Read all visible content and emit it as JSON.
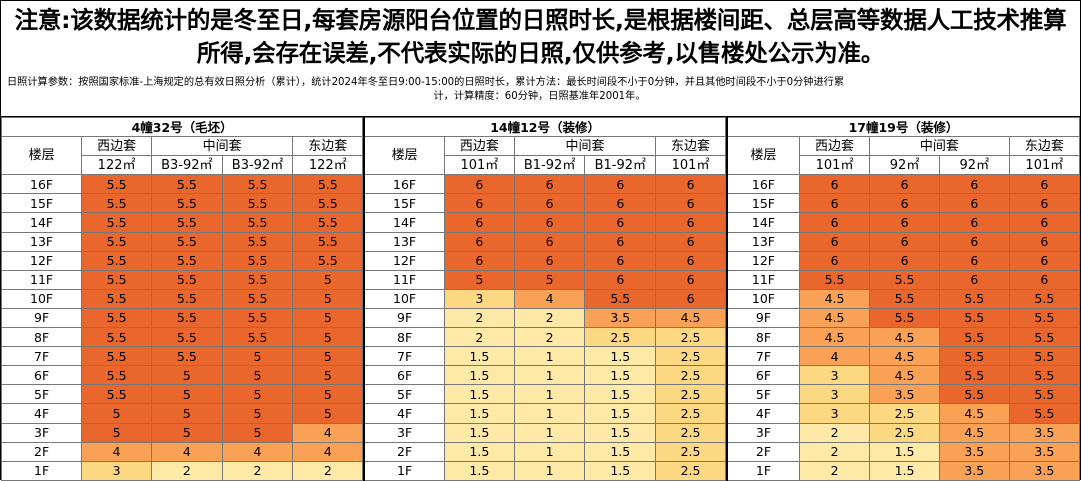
{
  "notice": "注意:该数据统计的是冬至日,每套房源阳台位置的日照时长,是根据楼间距、总层高等数据人工技术推算所得,会存在误差,不代表实际的日照,仅供参考,以售楼处公示为准。",
  "params_line1": "日照计算参数：按照国家标准-上海规定的总有效日照分析（累计），统计2024年冬至日9:00-15:00的日照时长，累计方法：最长时间段不小于0分钟，并且其他时间段不小于0分钟进行累",
  "params_line2": "计，计算精度：60分钟，日照基准年2001年。",
  "floor_label": "楼层",
  "colors": {
    "dark": "#E9662C",
    "mid": "#F9A154",
    "light": "#FDD882",
    "pale": "#FEE9A6"
  },
  "buildings": [
    {
      "name": "4幢32号（毛坯）",
      "groups": [
        "西边套",
        "中间套",
        "东边套"
      ],
      "units": [
        "122㎡",
        "B3-92㎡",
        "B3-92㎡",
        "122㎡"
      ],
      "rows": [
        {
          "floor": "16F",
          "values": [
            "5.5",
            "5.5",
            "5.5",
            "5.5"
          ]
        },
        {
          "floor": "15F",
          "values": [
            "5.5",
            "5.5",
            "5.5",
            "5.5"
          ]
        },
        {
          "floor": "14F",
          "values": [
            "5.5",
            "5.5",
            "5.5",
            "5.5"
          ]
        },
        {
          "floor": "13F",
          "values": [
            "5.5",
            "5.5",
            "5.5",
            "5.5"
          ]
        },
        {
          "floor": "12F",
          "values": [
            "5.5",
            "5.5",
            "5.5",
            "5.5"
          ]
        },
        {
          "floor": "11F",
          "values": [
            "5.5",
            "5.5",
            "5.5",
            "5"
          ]
        },
        {
          "floor": "10F",
          "values": [
            "5.5",
            "5.5",
            "5.5",
            "5"
          ]
        },
        {
          "floor": "9F",
          "values": [
            "5.5",
            "5.5",
            "5.5",
            "5"
          ]
        },
        {
          "floor": "8F",
          "values": [
            "5.5",
            "5.5",
            "5.5",
            "5"
          ]
        },
        {
          "floor": "7F",
          "values": [
            "5.5",
            "5.5",
            "5",
            "5"
          ]
        },
        {
          "floor": "6F",
          "values": [
            "5.5",
            "5",
            "5",
            "5"
          ]
        },
        {
          "floor": "5F",
          "values": [
            "5.5",
            "5",
            "5",
            "5"
          ]
        },
        {
          "floor": "4F",
          "values": [
            "5",
            "5",
            "5",
            "5"
          ]
        },
        {
          "floor": "3F",
          "values": [
            "5",
            "5",
            "5",
            "4"
          ]
        },
        {
          "floor": "2F",
          "values": [
            "4",
            "4",
            "4",
            "4"
          ]
        },
        {
          "floor": "1F",
          "values": [
            "3",
            "2",
            "2",
            "2"
          ]
        }
      ]
    },
    {
      "name": "14幢12号（装修）",
      "groups": [
        "西边套",
        "中间套",
        "东边套"
      ],
      "units": [
        "101㎡",
        "B1-92㎡",
        "B1-92㎡",
        "101㎡"
      ],
      "rows": [
        {
          "floor": "16F",
          "values": [
            "6",
            "6",
            "6",
            "6"
          ]
        },
        {
          "floor": "15F",
          "values": [
            "6",
            "6",
            "6",
            "6"
          ]
        },
        {
          "floor": "14F",
          "values": [
            "6",
            "6",
            "6",
            "6"
          ]
        },
        {
          "floor": "13F",
          "values": [
            "6",
            "6",
            "6",
            "6"
          ]
        },
        {
          "floor": "12F",
          "values": [
            "6",
            "6",
            "6",
            "6"
          ]
        },
        {
          "floor": "11F",
          "values": [
            "5",
            "5",
            "6",
            "6"
          ]
        },
        {
          "floor": "10F",
          "values": [
            "3",
            "4",
            "5.5",
            "6"
          ]
        },
        {
          "floor": "9F",
          "values": [
            "2",
            "2",
            "3.5",
            "4.5"
          ]
        },
        {
          "floor": "8F",
          "values": [
            "2",
            "2",
            "2.5",
            "2.5"
          ]
        },
        {
          "floor": "7F",
          "values": [
            "1.5",
            "1",
            "1.5",
            "2.5"
          ]
        },
        {
          "floor": "6F",
          "values": [
            "1.5",
            "1",
            "1.5",
            "2.5"
          ]
        },
        {
          "floor": "5F",
          "values": [
            "1.5",
            "1",
            "1.5",
            "2.5"
          ]
        },
        {
          "floor": "4F",
          "values": [
            "1.5",
            "1",
            "1.5",
            "2.5"
          ]
        },
        {
          "floor": "3F",
          "values": [
            "1.5",
            "1",
            "1.5",
            "2.5"
          ]
        },
        {
          "floor": "2F",
          "values": [
            "1.5",
            "1",
            "1.5",
            "2.5"
          ]
        },
        {
          "floor": "1F",
          "values": [
            "1.5",
            "1",
            "1.5",
            "2.5"
          ]
        }
      ]
    },
    {
      "name": "17幢19号（装修）",
      "groups": [
        "西边套",
        "中间套",
        "东边套"
      ],
      "units": [
        "101㎡",
        "92㎡",
        "92㎡",
        "101㎡"
      ],
      "rows": [
        {
          "floor": "16F",
          "values": [
            "6",
            "6",
            "6",
            "6"
          ]
        },
        {
          "floor": "15F",
          "values": [
            "6",
            "6",
            "6",
            "6"
          ]
        },
        {
          "floor": "14F",
          "values": [
            "6",
            "6",
            "6",
            "6"
          ]
        },
        {
          "floor": "13F",
          "values": [
            "6",
            "6",
            "6",
            "6"
          ]
        },
        {
          "floor": "12F",
          "values": [
            "6",
            "6",
            "6",
            "6"
          ]
        },
        {
          "floor": "11F",
          "values": [
            "5.5",
            "5.5",
            "6",
            "6"
          ]
        },
        {
          "floor": "10F",
          "values": [
            "4.5",
            "5.5",
            "5.5",
            "5.5"
          ]
        },
        {
          "floor": "9F",
          "values": [
            "4.5",
            "5.5",
            "5.5",
            "5.5"
          ]
        },
        {
          "floor": "8F",
          "values": [
            "4.5",
            "4.5",
            "5.5",
            "5.5"
          ]
        },
        {
          "floor": "7F",
          "values": [
            "4",
            "4.5",
            "5.5",
            "5.5"
          ]
        },
        {
          "floor": "6F",
          "values": [
            "3",
            "4.5",
            "5.5",
            "5.5"
          ]
        },
        {
          "floor": "5F",
          "values": [
            "3",
            "3.5",
            "5.5",
            "5.5"
          ]
        },
        {
          "floor": "4F",
          "values": [
            "3",
            "2.5",
            "4.5",
            "5.5"
          ]
        },
        {
          "floor": "3F",
          "values": [
            "2",
            "2.5",
            "4.5",
            "3.5"
          ]
        },
        {
          "floor": "2F",
          "values": [
            "2",
            "1.5",
            "3.5",
            "3.5"
          ]
        },
        {
          "floor": "1F",
          "values": [
            "2",
            "1.5",
            "3.5",
            "3.5"
          ]
        }
      ]
    }
  ]
}
